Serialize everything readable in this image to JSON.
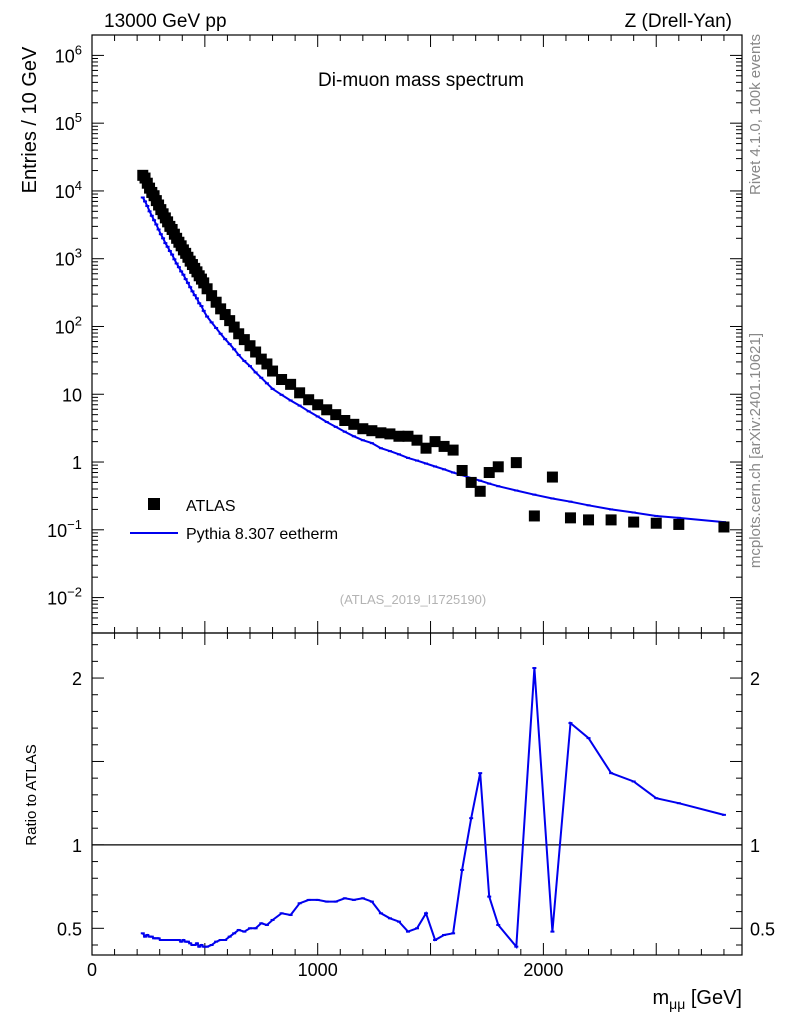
{
  "header": {
    "left": "13000 GeV pp",
    "right": "Z (Drell-Yan)"
  },
  "side_labels": {
    "rivet": "Rivet 4.1.0,  100k events",
    "mcplots": "mcplots.cern.ch [arXiv:2401.10621]"
  },
  "chart_data": [
    {
      "type": "scatter",
      "title": "Di-muon mass spectrum",
      "ylabel": "Entries / 10 GeV",
      "xlabel": "",
      "yscale": "log",
      "xlim": [
        0,
        2880
      ],
      "ylim": [
        0.003,
        2000000
      ],
      "analysis_tag": "(ATLAS_2019_I1725190)",
      "y_ticks": [
        {
          "value": 0.01,
          "label": "10",
          "sup": "−2"
        },
        {
          "value": 0.1,
          "label": "10",
          "sup": "−1"
        },
        {
          "value": 1,
          "label": "1",
          "sup": ""
        },
        {
          "value": 10,
          "label": "10",
          "sup": ""
        },
        {
          "value": 100,
          "label": "10",
          "sup": "2"
        },
        {
          "value": 1000,
          "label": "10",
          "sup": "3"
        },
        {
          "value": 10000,
          "label": "10",
          "sup": "4"
        },
        {
          "value": 100000,
          "label": "10",
          "sup": "5"
        },
        {
          "value": 1000000,
          "label": "10",
          "sup": "6"
        }
      ],
      "legend": [
        {
          "label": "ATLAS",
          "color": "#000000",
          "marker": "square"
        },
        {
          "label": "Pythia 8.307 eetherm",
          "color": "#0000ee",
          "marker": "line"
        }
      ],
      "series": [
        {
          "name": "ATLAS",
          "color": "#000000",
          "x": [
            225,
            235,
            245,
            255,
            265,
            275,
            285,
            295,
            305,
            315,
            325,
            335,
            345,
            355,
            365,
            375,
            385,
            395,
            405,
            415,
            425,
            435,
            445,
            455,
            465,
            475,
            485,
            495,
            510,
            530,
            550,
            570,
            590,
            610,
            630,
            650,
            675,
            700,
            725,
            750,
            775,
            800,
            840,
            880,
            920,
            960,
            1000,
            1040,
            1080,
            1120,
            1160,
            1200,
            1240,
            1280,
            1320,
            1360,
            1400,
            1440,
            1480,
            1520,
            1560,
            1600,
            1640,
            1680,
            1720,
            1760,
            1800,
            1880,
            1960,
            2040,
            2120,
            2200,
            2300,
            2400,
            2500,
            2600,
            2800
          ],
          "y": [
            17000,
            15500,
            13000,
            11000,
            9500,
            8500,
            7200,
            6200,
            5300,
            4600,
            4000,
            3500,
            3000,
            2700,
            2300,
            2000,
            1750,
            1550,
            1350,
            1200,
            1050,
            920,
            820,
            720,
            640,
            560,
            500,
            440,
            360,
            285,
            228,
            182,
            150,
            122,
            98,
            78,
            64,
            52,
            42,
            33,
            28,
            22,
            16.5,
            14,
            10.5,
            8.3,
            7,
            5.9,
            5,
            4.1,
            3.6,
            3.1,
            2.9,
            2.7,
            2.6,
            2.4,
            2.4,
            2.1,
            1.6,
            2.0,
            1.7,
            1.5,
            0.75,
            0.5,
            0.37,
            0.7,
            0.85,
            0.98,
            0.16,
            0.6,
            0.15,
            0.14,
            0.14,
            0.13,
            0.125,
            0.12,
            0.11
          ]
        },
        {
          "name": "Pythia 8.307 eetherm",
          "color": "#0000ee",
          "x": [
            225,
            235,
            245,
            255,
            265,
            275,
            285,
            295,
            305,
            315,
            325,
            335,
            345,
            355,
            365,
            375,
            385,
            395,
            405,
            415,
            425,
            435,
            445,
            455,
            465,
            475,
            485,
            495,
            510,
            530,
            550,
            570,
            590,
            610,
            630,
            650,
            675,
            700,
            725,
            750,
            775,
            800,
            840,
            880,
            920,
            960,
            1000,
            1040,
            1080,
            1120,
            1160,
            1200,
            1240,
            1280,
            1320,
            1360,
            1400,
            1440,
            1480,
            1520,
            1560,
            1600,
            1640,
            1680,
            1720,
            1760,
            1800,
            1880,
            1960,
            2040,
            2120,
            2200,
            2300,
            2400,
            2500,
            2600,
            2800
          ],
          "y": [
            8000,
            7000,
            6000,
            5000,
            4300,
            3700,
            3200,
            2700,
            2300,
            2000,
            1700,
            1500,
            1300,
            1150,
            980,
            850,
            750,
            650,
            580,
            500,
            440,
            380,
            330,
            290,
            260,
            220,
            200,
            170,
            140,
            115,
            95,
            78,
            65,
            55,
            46,
            38,
            31,
            26,
            21,
            17.5,
            14.5,
            12,
            9.8,
            8.1,
            6.8,
            5.6,
            4.7,
            3.9,
            3.3,
            2.8,
            2.4,
            2.1,
            1.9,
            1.6,
            1.45,
            1.3,
            1.15,
            1.05,
            0.95,
            0.86,
            0.78,
            0.7,
            0.64,
            0.58,
            0.53,
            0.48,
            0.44,
            0.38,
            0.33,
            0.29,
            0.26,
            0.23,
            0.2,
            0.18,
            0.16,
            0.15,
            0.13
          ]
        }
      ]
    },
    {
      "type": "line",
      "ylabel": "Ratio to ATLAS",
      "xlabel": "m",
      "xlabel_sub": "μμ",
      "xlabel_unit": " [GeV]",
      "xlim": [
        0,
        2880
      ],
      "ylim": [
        0.34,
        2.27
      ],
      "reference_line": 1,
      "x_ticks": [
        {
          "value": 0,
          "label": "0"
        },
        {
          "value": 1000,
          "label": "1000"
        },
        {
          "value": 2000,
          "label": "2000"
        }
      ],
      "y_ticks": [
        {
          "value": 0.5,
          "label": "0.5"
        },
        {
          "value": 1,
          "label": "1"
        },
        {
          "value": 2,
          "label": "2"
        }
      ],
      "series": [
        {
          "name": "Pythia 8.307 eetherm",
          "color": "#0000ee",
          "x": [
            225,
            235,
            245,
            255,
            265,
            275,
            285,
            295,
            305,
            315,
            325,
            335,
            345,
            355,
            365,
            375,
            385,
            395,
            405,
            415,
            425,
            435,
            445,
            455,
            465,
            475,
            485,
            495,
            510,
            530,
            550,
            570,
            590,
            610,
            630,
            650,
            675,
            700,
            725,
            750,
            775,
            800,
            840,
            880,
            920,
            960,
            1000,
            1040,
            1080,
            1120,
            1160,
            1200,
            1240,
            1280,
            1320,
            1360,
            1400,
            1440,
            1480,
            1520,
            1560,
            1600,
            1640,
            1680,
            1720,
            1760,
            1800,
            1880,
            1960,
            2040,
            2120,
            2200,
            2300,
            2400,
            2500,
            2600,
            2800
          ],
          "y": [
            0.47,
            0.45,
            0.46,
            0.45,
            0.45,
            0.44,
            0.44,
            0.44,
            0.43,
            0.43,
            0.43,
            0.43,
            0.43,
            0.43,
            0.43,
            0.43,
            0.43,
            0.42,
            0.43,
            0.42,
            0.42,
            0.41,
            0.4,
            0.4,
            0.41,
            0.39,
            0.4,
            0.39,
            0.39,
            0.4,
            0.42,
            0.43,
            0.43,
            0.45,
            0.47,
            0.49,
            0.48,
            0.5,
            0.5,
            0.53,
            0.52,
            0.55,
            0.59,
            0.58,
            0.65,
            0.67,
            0.67,
            0.66,
            0.66,
            0.68,
            0.67,
            0.68,
            0.66,
            0.59,
            0.56,
            0.54,
            0.48,
            0.5,
            0.59,
            0.43,
            0.46,
            0.47,
            0.85,
            1.16,
            1.43,
            0.69,
            0.52,
            0.39,
            2.06,
            0.48,
            1.73,
            1.64,
            1.43,
            1.38,
            1.28,
            1.25,
            1.18
          ]
        }
      ]
    }
  ]
}
